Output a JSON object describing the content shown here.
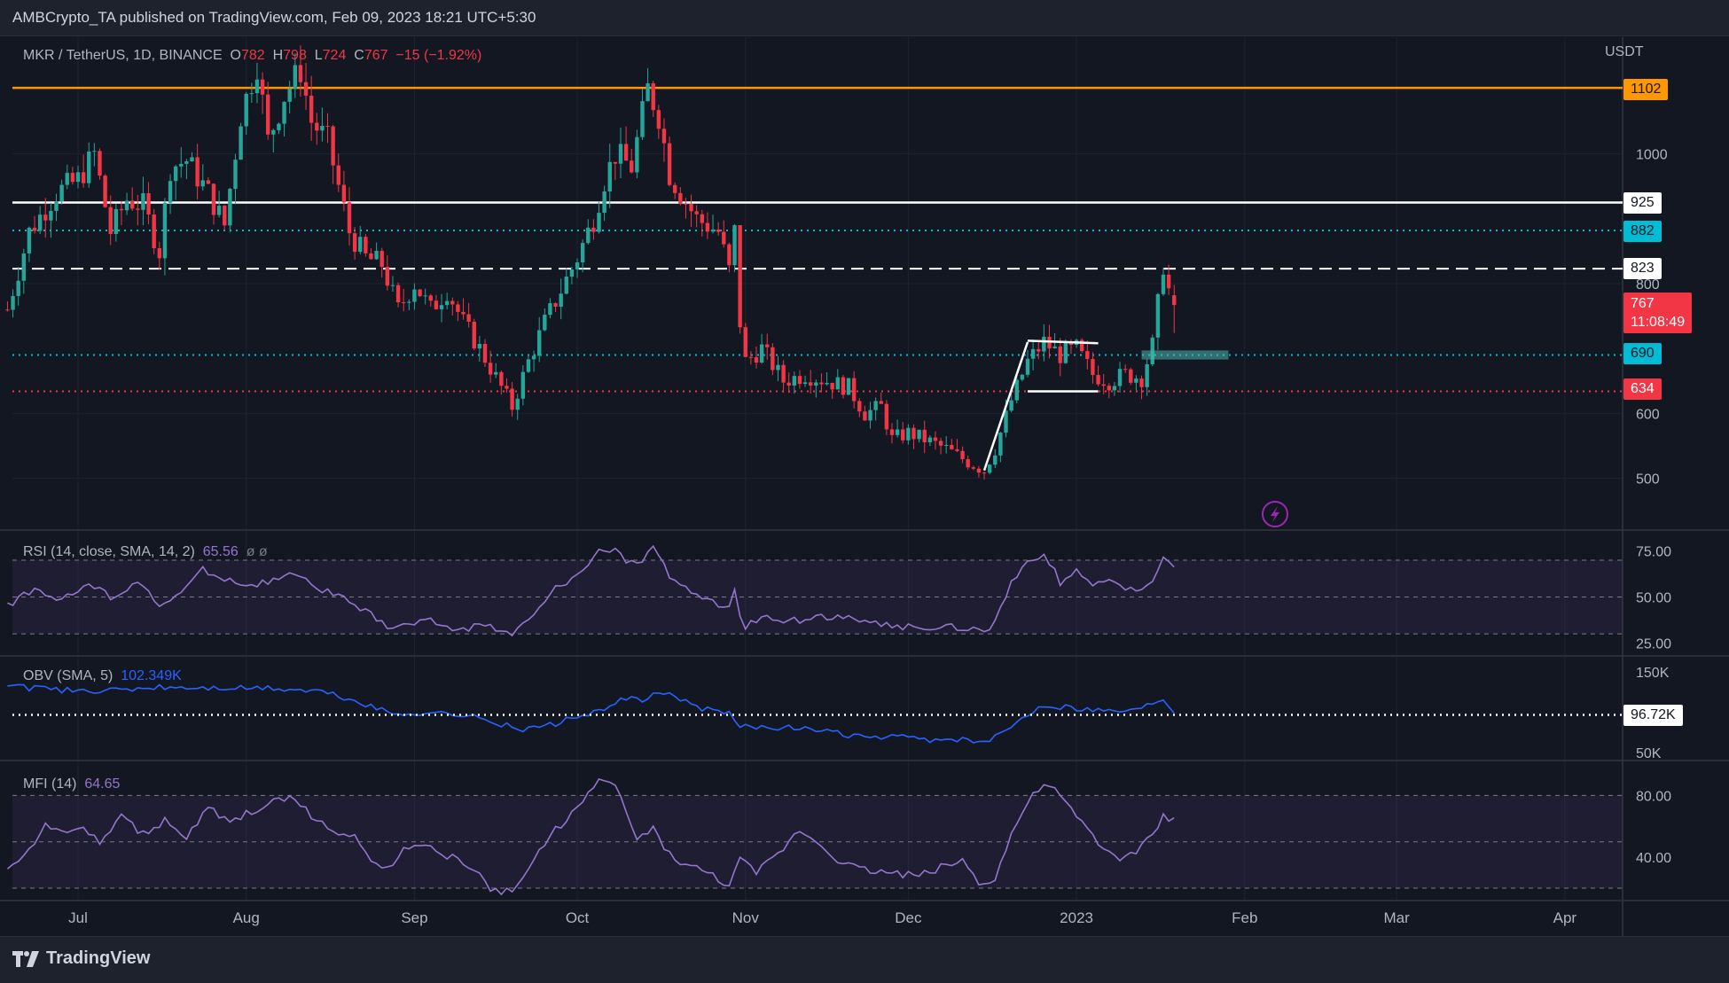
{
  "header": {
    "publisher_text": "AMBCrypto_TA published on TradingView.com, Feb 09, 2023 18:21 UTC+5:30"
  },
  "footer": {
    "brand": "TradingView"
  },
  "colors": {
    "bg": "#131722",
    "up": "#26a69a",
    "down": "#f23645",
    "orange": "#ff9800",
    "cyan": "#00bcd4",
    "purple": "#9575cd",
    "obv": "#2962ff"
  },
  "legend": {
    "symbol": "MKR / TetherUS, 1D, BINANCE",
    "o_label": "O",
    "o_value": "782",
    "h_label": "H",
    "h_value": "798",
    "l_label": "L",
    "l_value": "724",
    "c_label": "C",
    "c_value": "767",
    "change": "−15 (−1.92%)"
  },
  "price_labels": {
    "currency": "USDT",
    "l1102": "1102",
    "l925": "925",
    "l882": "882",
    "l823": "823",
    "last_price": "767",
    "countdown": "11:08:49",
    "l690": "690",
    "l634": "634"
  },
  "rsi": {
    "legend": "RSI (14, close, SMA, 14, 2)",
    "value": "65.56",
    "extra": "ø  ø"
  },
  "obv": {
    "legend": "OBV (SMA, 5)",
    "value": "102.349K",
    "marker": "96.72K",
    "ticks": [
      "150K",
      "50K"
    ]
  },
  "mfi": {
    "legend": "MFI (14)",
    "value": "64.65"
  },
  "chart_data": [
    {
      "type": "candlestick",
      "title": "MKR / TetherUS, 1D, BINANCE",
      "ylabel": "USDT",
      "ylim": [
        420,
        1180
      ],
      "y_ticks": [
        "1000",
        "800",
        "600",
        "500"
      ],
      "x_ticks": [
        "Jul",
        "Aug",
        "Sep",
        "Oct",
        "Nov",
        "Dec",
        "2023",
        "Feb",
        "Mar",
        "Apr"
      ],
      "x_anchor_days": [
        0,
        31,
        62,
        92,
        123,
        153,
        184,
        215,
        243,
        274
      ],
      "last_day": 221,
      "anchors": [
        [
          -13,
          760
        ],
        [
          -9,
          880
        ],
        [
          -4,
          940
        ],
        [
          0,
          960
        ],
        [
          3,
          1000
        ],
        [
          6,
          880
        ],
        [
          9,
          930
        ],
        [
          12,
          920
        ],
        [
          15,
          850
        ],
        [
          17,
          980
        ],
        [
          20,
          990
        ],
        [
          24,
          940
        ],
        [
          27,
          890
        ],
        [
          30,
          1060
        ],
        [
          33,
          1140
        ],
        [
          35,
          1020
        ],
        [
          38,
          1090
        ],
        [
          41,
          1130
        ],
        [
          43,
          1050
        ],
        [
          46,
          1020
        ],
        [
          48,
          950
        ],
        [
          50,
          880
        ],
        [
          53,
          840
        ],
        [
          56,
          830
        ],
        [
          59,
          760
        ],
        [
          62,
          800
        ],
        [
          65,
          760
        ],
        [
          68,
          790
        ],
        [
          71,
          740
        ],
        [
          74,
          700
        ],
        [
          78,
          640
        ],
        [
          80,
          610
        ],
        [
          83,
          680
        ],
        [
          86,
          740
        ],
        [
          89,
          790
        ],
        [
          92,
          840
        ],
        [
          95,
          900
        ],
        [
          97,
          960
        ],
        [
          99,
          1000
        ],
        [
          102,
          980
        ],
        [
          105,
          1100
        ],
        [
          107,
          1060
        ],
        [
          109,
          970
        ],
        [
          111,
          940
        ],
        [
          114,
          900
        ],
        [
          118,
          880
        ],
        [
          120,
          820
        ],
        [
          121,
          880
        ],
        [
          122,
          740
        ],
        [
          123,
          680
        ],
        [
          126,
          700
        ],
        [
          130,
          650
        ],
        [
          134,
          660
        ],
        [
          138,
          650
        ],
        [
          142,
          640
        ],
        [
          145,
          600
        ],
        [
          148,
          610
        ],
        [
          150,
          560
        ],
        [
          153,
          570
        ],
        [
          156,
          560
        ],
        [
          160,
          545
        ],
        [
          164,
          525
        ],
        [
          167,
          512
        ],
        [
          169,
          545
        ],
        [
          172,
          620
        ],
        [
          175,
          680
        ],
        [
          178,
          710
        ],
        [
          181,
          690
        ],
        [
          184,
          700
        ],
        [
          187,
          660
        ],
        [
          190,
          650
        ],
        [
          193,
          660
        ],
        [
          196,
          655
        ],
        [
          198,
          705
        ],
        [
          200,
          830
        ],
        [
          201,
          790
        ],
        [
          202,
          767
        ]
      ],
      "levels": [
        {
          "value": 1102,
          "style": "solid",
          "color": "#ff9800"
        },
        {
          "value": 925,
          "style": "solid",
          "color": "#ffffff"
        },
        {
          "value": 882,
          "style": "dotted",
          "color": "#00bcd4"
        },
        {
          "value": 823,
          "style": "dashed",
          "color": "#ffffff"
        },
        {
          "value": 690,
          "style": "dotted",
          "color": "#00bcd4"
        },
        {
          "value": 634,
          "style": "dotted",
          "color": "#f23645"
        }
      ],
      "annotations": [
        {
          "type": "trendline",
          "from": [
            167,
            512
          ],
          "to": [
            175,
            710
          ]
        },
        {
          "type": "flag_top",
          "from": [
            175,
            712
          ],
          "to": [
            188,
            708
          ]
        },
        {
          "type": "flag_bottom",
          "from": [
            175,
            634
          ],
          "to": [
            188,
            634
          ]
        },
        {
          "type": "zone",
          "from_day": 196,
          "to_day": 212,
          "low": 683,
          "high": 697
        }
      ]
    },
    {
      "type": "line",
      "title": "RSI (14, close, SMA, 14, 2)",
      "ylim": [
        18,
        82
      ],
      "bands": [
        30,
        50,
        70
      ],
      "y_ticks": [
        "75.00",
        "50.00",
        "25.00"
      ],
      "anchors": [
        [
          -13,
          45
        ],
        [
          -8,
          55
        ],
        [
          -3,
          48
        ],
        [
          2,
          57
        ],
        [
          6,
          50
        ],
        [
          11,
          58
        ],
        [
          15,
          45
        ],
        [
          19,
          52
        ],
        [
          23,
          65
        ],
        [
          27,
          60
        ],
        [
          31,
          56
        ],
        [
          35,
          58
        ],
        [
          40,
          62
        ],
        [
          44,
          55
        ],
        [
          47,
          52
        ],
        [
          51,
          45
        ],
        [
          54,
          40
        ],
        [
          57,
          34
        ],
        [
          61,
          35
        ],
        [
          65,
          37
        ],
        [
          70,
          32
        ],
        [
          75,
          35
        ],
        [
          80,
          30
        ],
        [
          84,
          40
        ],
        [
          88,
          55
        ],
        [
          92,
          62
        ],
        [
          96,
          74
        ],
        [
          99,
          77
        ],
        [
          101,
          70
        ],
        [
          103,
          67
        ],
        [
          106,
          76
        ],
        [
          109,
          62
        ],
        [
          112,
          55
        ],
        [
          116,
          48
        ],
        [
          120,
          43
        ],
        [
          121,
          56
        ],
        [
          122,
          38
        ],
        [
          123,
          34
        ],
        [
          127,
          40
        ],
        [
          131,
          37
        ],
        [
          135,
          38
        ],
        [
          140,
          40
        ],
        [
          145,
          36
        ],
        [
          150,
          34
        ],
        [
          155,
          34
        ],
        [
          160,
          34
        ],
        [
          165,
          33
        ],
        [
          168,
          32
        ],
        [
          172,
          57
        ],
        [
          175,
          68
        ],
        [
          178,
          73
        ],
        [
          180,
          65
        ],
        [
          181,
          57
        ],
        [
          184,
          65
        ],
        [
          187,
          55
        ],
        [
          190,
          60
        ],
        [
          193,
          53
        ],
        [
          196,
          55
        ],
        [
          198,
          60
        ],
        [
          200,
          70
        ],
        [
          202,
          66
        ]
      ]
    },
    {
      "type": "line",
      "title": "OBV (SMA, 5)",
      "ylim": [
        40,
        160
      ],
      "marker_value": 96.72,
      "y_ticks": [
        "150K",
        "50K"
      ],
      "anchors": [
        [
          -13,
          132
        ],
        [
          -5,
          128
        ],
        [
          5,
          126
        ],
        [
          15,
          131
        ],
        [
          25,
          130
        ],
        [
          35,
          130
        ],
        [
          45,
          126
        ],
        [
          52,
          112
        ],
        [
          58,
          98
        ],
        [
          65,
          100
        ],
        [
          72,
          96
        ],
        [
          78,
          85
        ],
        [
          82,
          78
        ],
        [
          88,
          86
        ],
        [
          92,
          95
        ],
        [
          97,
          102
        ],
        [
          101,
          118
        ],
        [
          104,
          113
        ],
        [
          107,
          126
        ],
        [
          110,
          118
        ],
        [
          115,
          105
        ],
        [
          120,
          98
        ],
        [
          122,
          83
        ],
        [
          126,
          82
        ],
        [
          132,
          80
        ],
        [
          138,
          76
        ],
        [
          145,
          68
        ],
        [
          150,
          70
        ],
        [
          156,
          66
        ],
        [
          162,
          66
        ],
        [
          167,
          62
        ],
        [
          170,
          72
        ],
        [
          174,
          93
        ],
        [
          178,
          110
        ],
        [
          181,
          106
        ],
        [
          185,
          105
        ],
        [
          190,
          102
        ],
        [
          195,
          103
        ],
        [
          198,
          112
        ],
        [
          200,
          118
        ],
        [
          202,
          100
        ]
      ]
    },
    {
      "type": "line",
      "title": "MFI (14)",
      "ylim": [
        12,
        98
      ],
      "bands": [
        20,
        50,
        80
      ],
      "y_ticks": [
        "80.00",
        "40.00"
      ],
      "anchors": [
        [
          -13,
          30
        ],
        [
          -9,
          45
        ],
        [
          -6,
          62
        ],
        [
          -3,
          55
        ],
        [
          0,
          60
        ],
        [
          4,
          50
        ],
        [
          8,
          66
        ],
        [
          12,
          55
        ],
        [
          16,
          64
        ],
        [
          20,
          52
        ],
        [
          24,
          72
        ],
        [
          28,
          62
        ],
        [
          32,
          70
        ],
        [
          36,
          76
        ],
        [
          40,
          78
        ],
        [
          44,
          64
        ],
        [
          48,
          55
        ],
        [
          51,
          52
        ],
        [
          54,
          40
        ],
        [
          57,
          32
        ],
        [
          61,
          48
        ],
        [
          65,
          45
        ],
        [
          69,
          40
        ],
        [
          72,
          35
        ],
        [
          76,
          20
        ],
        [
          80,
          17
        ],
        [
          84,
          38
        ],
        [
          88,
          58
        ],
        [
          92,
          72
        ],
        [
          96,
          88
        ],
        [
          99,
          88
        ],
        [
          101,
          68
        ],
        [
          103,
          52
        ],
        [
          106,
          58
        ],
        [
          109,
          42
        ],
        [
          112,
          35
        ],
        [
          116,
          30
        ],
        [
          120,
          22
        ],
        [
          122,
          38
        ],
        [
          125,
          30
        ],
        [
          129,
          42
        ],
        [
          133,
          58
        ],
        [
          137,
          48
        ],
        [
          141,
          36
        ],
        [
          145,
          32
        ],
        [
          150,
          30
        ],
        [
          155,
          28
        ],
        [
          160,
          35
        ],
        [
          163,
          38
        ],
        [
          166,
          24
        ],
        [
          169,
          26
        ],
        [
          172,
          55
        ],
        [
          175,
          75
        ],
        [
          178,
          88
        ],
        [
          181,
          80
        ],
        [
          183,
          70
        ],
        [
          186,
          58
        ],
        [
          189,
          45
        ],
        [
          192,
          40
        ],
        [
          195,
          42
        ],
        [
          198,
          55
        ],
        [
          200,
          66
        ],
        [
          202,
          64
        ]
      ]
    }
  ]
}
